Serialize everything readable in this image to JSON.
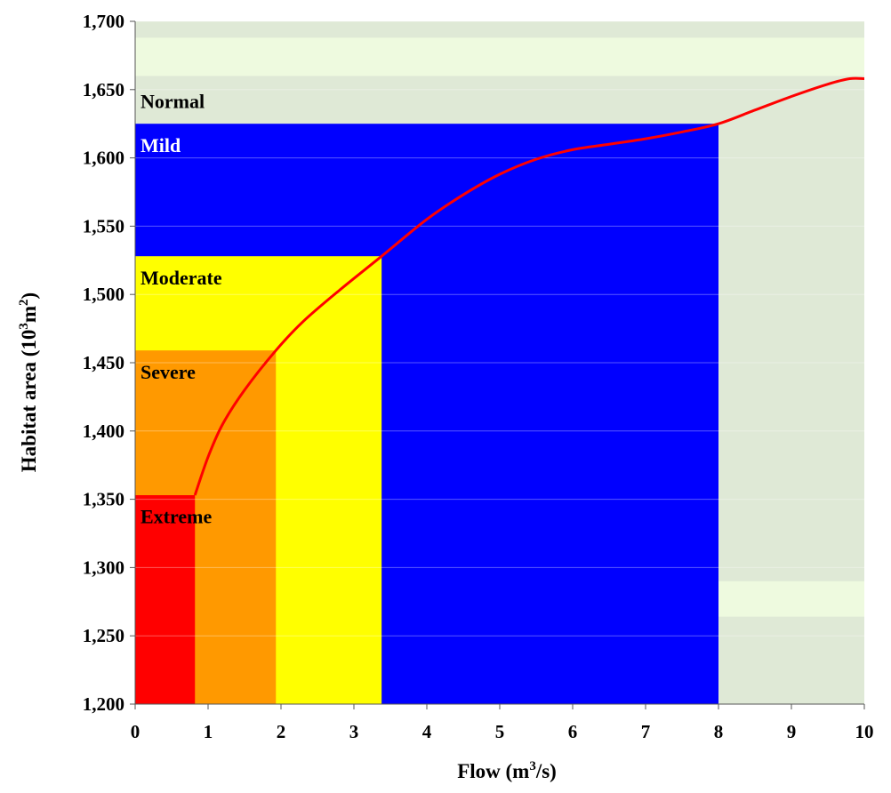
{
  "chart_data": {
    "type": "line",
    "xlabel": "Flow (m",
    "xlabel_sup": "3",
    "xlabel_tail": "/s)",
    "ylabel": "Habitat area (10",
    "ylabel_sup1": "3",
    "ylabel_mid": "m",
    "ylabel_sup2": "2",
    "ylabel_tail": ")",
    "xlim": [
      0,
      10
    ],
    "ylim": [
      1200,
      1700
    ],
    "x_ticks": [
      0,
      1,
      2,
      3,
      4,
      5,
      6,
      7,
      8,
      9,
      10
    ],
    "y_ticks": [
      1200,
      1250,
      1300,
      1350,
      1400,
      1450,
      1500,
      1550,
      1600,
      1650,
      1700
    ],
    "x_tick_labels": [
      "0",
      "1",
      "2",
      "3",
      "4",
      "5",
      "6",
      "7",
      "8",
      "9",
      "10"
    ],
    "y_tick_labels": [
      "1,200",
      "1,250",
      "1,300",
      "1,350",
      "1,400",
      "1,450",
      "1,500",
      "1,550",
      "1,600",
      "1,650",
      "1,700"
    ],
    "grid": true,
    "background_color": "#dfe9d6",
    "highlight_bands": [
      {
        "y0": 1660,
        "y1": 1688,
        "color": "#eefadf"
      },
      {
        "y0": 1264,
        "y1": 1290,
        "color": "#eefadf"
      }
    ],
    "zones": [
      {
        "label": "Normal",
        "x_max": 10,
        "y_max": 1700,
        "color": "#dfe9d6",
        "label_color": "#000000",
        "label_y": 1641
      },
      {
        "label": "Mild",
        "x_max": 8,
        "y_max": 1625,
        "color": "#0000ff",
        "label_color": "#ffffff",
        "label_y": 1609
      },
      {
        "label": "Moderate",
        "x_max": 3.38,
        "y_max": 1528,
        "color": "#ffff00",
        "label_color": "#000000",
        "label_y": 1512
      },
      {
        "label": "Severe",
        "x_max": 1.93,
        "y_max": 1459,
        "color": "#ff9900",
        "label_color": "#000000",
        "label_y": 1443
      },
      {
        "label": "Extreme",
        "x_max": 0.82,
        "y_max": 1353,
        "color": "#ff0000",
        "label_color": "#000000",
        "label_y": 1337
      }
    ],
    "series": [
      {
        "color": "#ff0000",
        "points": [
          [
            0.82,
            1353
          ],
          [
            1.0,
            1381
          ],
          [
            1.2,
            1405
          ],
          [
            1.5,
            1430
          ],
          [
            1.93,
            1459
          ],
          [
            2.3,
            1480
          ],
          [
            2.8,
            1503
          ],
          [
            3.38,
            1528
          ],
          [
            4.0,
            1555
          ],
          [
            4.5,
            1573
          ],
          [
            5.0,
            1588
          ],
          [
            5.5,
            1599
          ],
          [
            6.0,
            1606
          ],
          [
            6.5,
            1610
          ],
          [
            7.0,
            1614
          ],
          [
            7.5,
            1619
          ],
          [
            8.0,
            1625
          ],
          [
            8.5,
            1635
          ],
          [
            9.0,
            1645
          ],
          [
            9.5,
            1654
          ],
          [
            9.8,
            1658
          ],
          [
            10.0,
            1658
          ]
        ]
      }
    ]
  }
}
